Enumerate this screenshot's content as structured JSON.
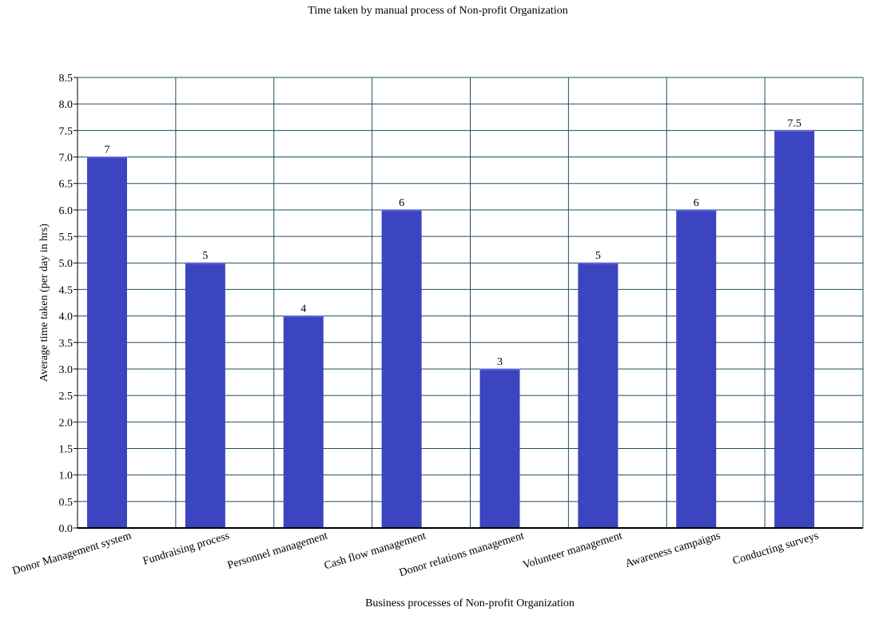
{
  "chart_data": {
    "type": "bar",
    "title": "Time taken by manual process of Non-profit Organization",
    "xlabel": "Business processes of Non-profit Organization",
    "ylabel": "Average time taken (per day in hrs)",
    "categories": [
      "Donor Management system",
      "Fundraising process",
      "Personnel management",
      "Cash flow management",
      "Donor relations management",
      "Volunteer management",
      "Awareness campaigns",
      "Conducting surveys"
    ],
    "values": [
      7,
      5,
      4,
      6,
      3,
      5,
      6,
      7.5
    ],
    "value_labels": [
      "7",
      "5",
      "4",
      "6",
      "3",
      "5",
      "6",
      "7.5"
    ],
    "ylim": [
      0,
      8.5
    ],
    "yticks": [
      0,
      0.5,
      1,
      1.5,
      2,
      2.5,
      3,
      3.5,
      4,
      4.5,
      5,
      5.5,
      6,
      6.5,
      7,
      7.5,
      8,
      8.5
    ],
    "ytick_labels": [
      "0.0",
      "0.5",
      "1.0",
      "1.5",
      "2.0",
      "2.5",
      "3.0",
      "3.5",
      "4.0",
      "4.5",
      "5.0",
      "5.5",
      "6.0",
      "6.5",
      "7.0",
      "7.5",
      "8.0",
      "8.5"
    ],
    "grid": true,
    "legend": "none",
    "colors": {
      "bar": "#3b45c0",
      "bar_top": "#5a63d6",
      "grid": "#1f4e5c",
      "axis": "#000000"
    }
  }
}
